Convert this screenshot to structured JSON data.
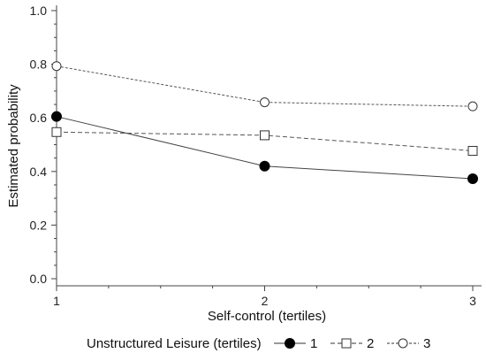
{
  "chart_data": {
    "type": "line",
    "x": [
      1,
      2,
      3
    ],
    "x_ticks": [
      "1",
      "2",
      "3"
    ],
    "y_ticks": [
      "0.0",
      "0.2",
      "0.4",
      "0.6",
      "0.8",
      "1.0"
    ],
    "xlabel": "Self-control (tertiles)",
    "ylabel": "Estimated probability",
    "xlim": [
      1,
      3
    ],
    "ylim": [
      0,
      1
    ],
    "grid": false,
    "legend": {
      "title": "Unstructured Leisure (tertiles)",
      "placement": "bottom"
    },
    "series": [
      {
        "name": "1",
        "marker": "filled-circle",
        "line": "solid",
        "values": [
          0.605,
          0.42,
          0.373
        ]
      },
      {
        "name": "2",
        "marker": "open-square",
        "line": "dashed",
        "values": [
          0.547,
          0.535,
          0.477
        ]
      },
      {
        "name": "3",
        "marker": "open-circle",
        "line": "dotted",
        "values": [
          0.793,
          0.658,
          0.643
        ]
      }
    ]
  }
}
